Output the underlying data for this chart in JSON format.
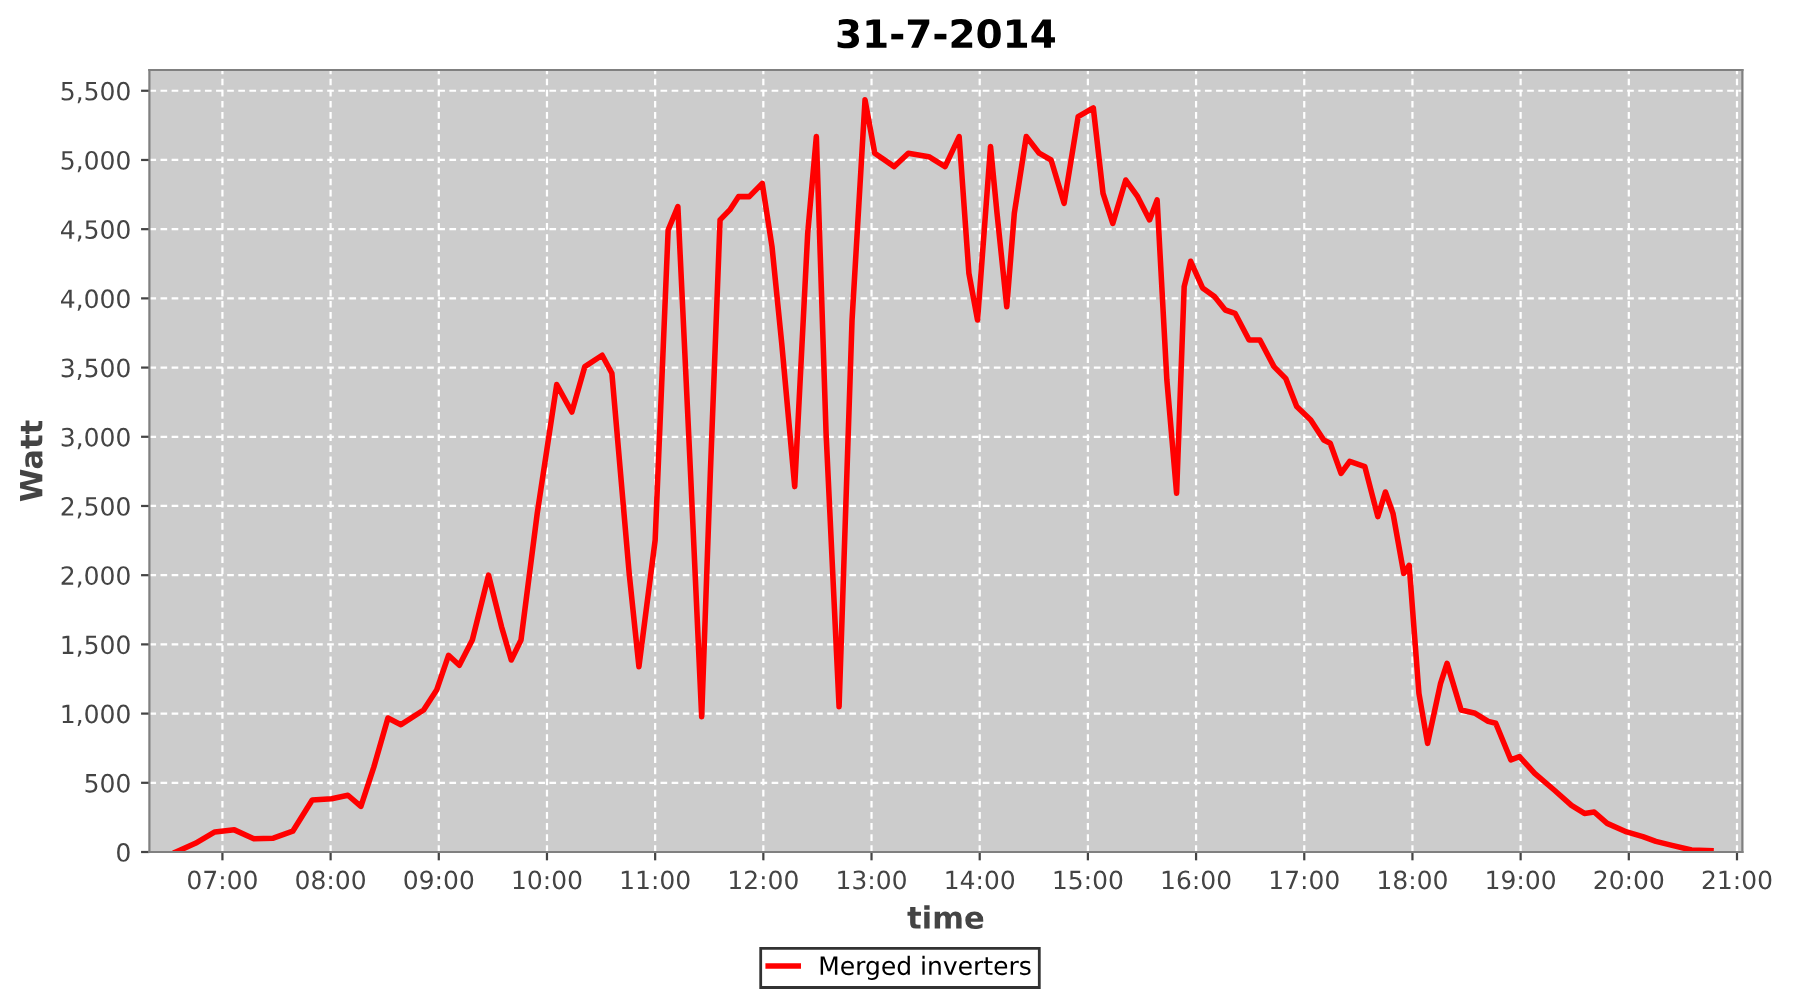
{
  "chart_data": {
    "type": "line",
    "title": "31-7-2014",
    "xlabel": "time",
    "ylabel": "Watt",
    "xlim": [
      6.325,
      21.05
    ],
    "xticks": [
      {
        "value": 7,
        "label": "07:00"
      },
      {
        "value": 8,
        "label": "08:00"
      },
      {
        "value": 9,
        "label": "09:00"
      },
      {
        "value": 10,
        "label": "10:00"
      },
      {
        "value": 11,
        "label": "11:00"
      },
      {
        "value": 12,
        "label": "12:00"
      },
      {
        "value": 13,
        "label": "13:00"
      },
      {
        "value": 14,
        "label": "14:00"
      },
      {
        "value": 15,
        "label": "15:00"
      },
      {
        "value": 16,
        "label": "16:00"
      },
      {
        "value": 17,
        "label": "17:00"
      },
      {
        "value": 18,
        "label": "18:00"
      },
      {
        "value": 19,
        "label": "19:00"
      },
      {
        "value": 20,
        "label": "20:00"
      },
      {
        "value": 21,
        "label": "21:00"
      }
    ],
    "ylim": [
      0,
      5650
    ],
    "yticks": [
      0,
      {
        "value": 500,
        "label": "500"
      },
      {
        "value": 1000,
        "label": "1,000"
      },
      {
        "value": 1500,
        "label": "1,500"
      },
      {
        "value": 2000,
        "label": "2,000"
      },
      {
        "value": 2500,
        "label": "2,500"
      },
      {
        "value": 3000,
        "label": "3,000"
      },
      {
        "value": 3500,
        "label": "3,500"
      },
      {
        "value": 4000,
        "label": "4,000"
      },
      {
        "value": 4500,
        "label": "4,500"
      },
      {
        "value": 5000,
        "label": "5,000"
      },
      {
        "value": 5500,
        "label": "5,500"
      }
    ],
    "grid": true,
    "legend": "bottom",
    "line_style": "solid",
    "series": [
      {
        "name": "Merged inverters",
        "color": "#ff0000",
        "x": [
          6.57,
          6.75,
          6.93,
          7.11,
          7.29,
          7.47,
          7.65,
          7.83,
          8.01,
          8.16,
          8.28,
          8.4,
          8.53,
          8.65,
          8.86,
          8.98,
          9.09,
          9.19,
          9.31,
          9.46,
          9.58,
          9.67,
          9.76,
          9.91,
          10.09,
          10.23,
          10.35,
          10.51,
          10.6,
          10.76,
          10.85,
          11.0,
          11.12,
          11.21,
          11.33,
          11.43,
          11.51,
          11.6,
          11.69,
          11.77,
          11.87,
          11.99,
          12.08,
          12.17,
          12.29,
          12.41,
          12.49,
          12.58,
          12.7,
          12.82,
          12.94,
          13.03,
          13.21,
          13.34,
          13.53,
          13.68,
          13.81,
          13.9,
          13.98,
          14.1,
          14.16,
          14.25,
          14.32,
          14.43,
          14.55,
          14.66,
          14.78,
          14.91,
          15.05,
          15.14,
          15.23,
          15.35,
          15.46,
          15.57,
          15.64,
          15.73,
          15.82,
          15.89,
          15.95,
          16.06,
          16.17,
          16.27,
          16.36,
          16.49,
          16.59,
          16.72,
          16.83,
          16.93,
          17.06,
          17.18,
          17.24,
          17.34,
          17.42,
          17.56,
          17.68,
          17.75,
          17.82,
          17.92,
          17.97,
          18.06,
          18.14,
          18.26,
          18.32,
          18.45,
          18.58,
          18.7,
          18.77,
          18.91,
          18.99,
          19.13,
          19.31,
          19.47,
          19.59,
          19.68,
          19.8,
          19.98,
          20.13,
          20.25,
          20.4,
          20.58,
          20.76
        ],
        "values": [
          0,
          63,
          145,
          160,
          96,
          100,
          150,
          375,
          385,
          410,
          330,
          615,
          968,
          920,
          1026,
          1170,
          1421,
          1349,
          1532,
          2000,
          1628,
          1387,
          1532,
          2447,
          3377,
          3179,
          3507,
          3589,
          3459,
          2013,
          1339,
          2254,
          4494,
          4663,
          2688,
          978,
          2736,
          4567,
          4639,
          4735,
          4735,
          4831,
          4374,
          3675,
          2640,
          4470,
          5169,
          3025,
          1050,
          3844,
          5434,
          5049,
          4952,
          5049,
          5024,
          4952,
          5169,
          4181,
          3844,
          5097,
          4615,
          3940,
          4615,
          5169,
          5049,
          5000,
          4687,
          5313,
          5376,
          4759,
          4542,
          4855,
          4735,
          4567,
          4711,
          3410,
          2592,
          4085,
          4268,
          4075,
          4013,
          3916,
          3892,
          3699,
          3699,
          3507,
          3420,
          3218,
          3121,
          2977,
          2953,
          2736,
          2823,
          2784,
          2423,
          2601,
          2447,
          2013,
          2071,
          1146,
          785,
          1219,
          1363,
          1026,
          1002,
          944,
          930,
          665,
          689,
          568,
          448,
          337,
          279,
          289,
          207,
          145,
          111,
          77,
          48,
          14,
          10
        ]
      }
    ]
  }
}
